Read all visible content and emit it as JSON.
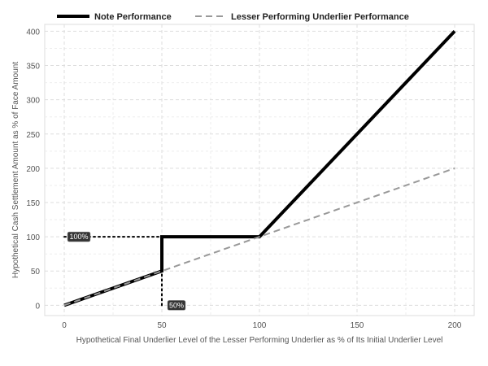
{
  "chart_data": {
    "type": "line",
    "title": "",
    "xlabel": "Hypothetical Final Underlier Level of the Lesser Performing Underlier as % of Its Initial Underlier Level",
    "ylabel": "Hypothetical Cash Settlement Amount as % of Face Amount",
    "xlim": [
      -10,
      210
    ],
    "ylim": [
      -15,
      410
    ],
    "xticks": [
      0,
      50,
      100,
      150,
      200
    ],
    "yticks": [
      0,
      50,
      100,
      150,
      200,
      250,
      300,
      350,
      400
    ],
    "grid": true,
    "legend_position": "top",
    "series": [
      {
        "name": "Note Performance",
        "style": "solid",
        "color": "#000000",
        "x": [
          0,
          50,
          50,
          100,
          200
        ],
        "y": [
          0,
          50,
          100,
          100,
          400
        ]
      },
      {
        "name": "Lesser Performing Underlier Performance",
        "style": "dashed",
        "color": "#999999",
        "x": [
          0,
          200
        ],
        "y": [
          0,
          200
        ]
      }
    ],
    "reference_lines": [
      {
        "style": "dotted",
        "x": [
          0,
          50
        ],
        "y": [
          100,
          100
        ]
      },
      {
        "style": "dotted",
        "x": [
          50,
          50
        ],
        "y": [
          0,
          100
        ]
      }
    ],
    "annotations": [
      {
        "text": "100%",
        "x": 0,
        "y": 100
      },
      {
        "text": "50%",
        "x": 50,
        "y": 0
      }
    ]
  }
}
